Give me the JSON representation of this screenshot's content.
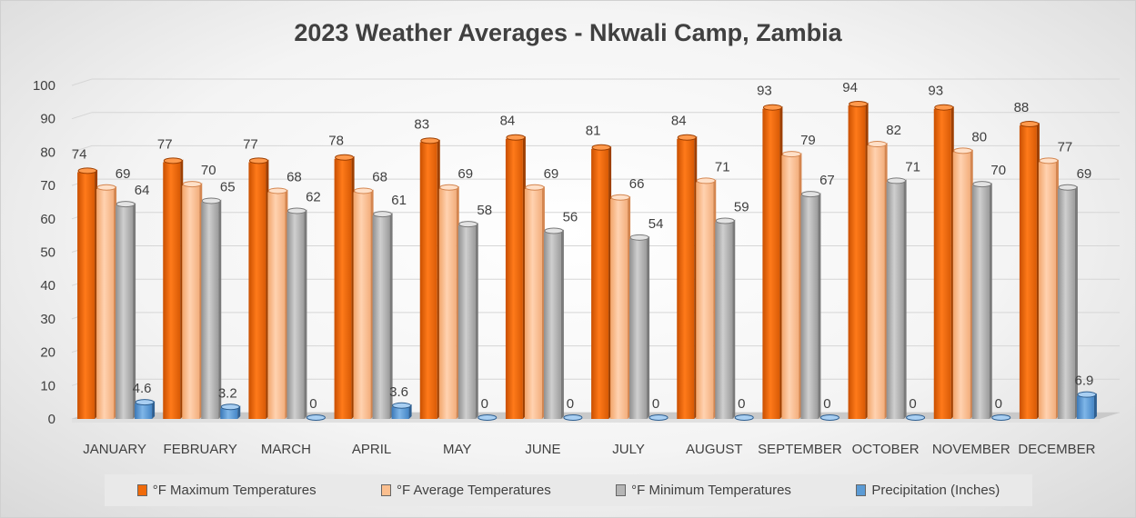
{
  "chart_data": {
    "type": "bar",
    "title": "2023 Weather Averages - Nkwali Camp, Zambia",
    "categories": [
      "JANUARY",
      "FEBRUARY",
      "MARCH",
      "APRIL",
      "MAY",
      "JUNE",
      "JULY",
      "AUGUST",
      "SEPTEMBER",
      "OCTOBER",
      "NOVEMBER",
      "DECEMBER"
    ],
    "series": [
      {
        "name": "°F Maximum Temperatures",
        "color": "#f06a0a",
        "values": [
          74,
          77,
          77,
          78,
          83,
          84,
          81,
          84,
          93,
          94,
          93,
          88
        ]
      },
      {
        "name": "°F Average Temperatures",
        "color": "#fbbf8f",
        "values": [
          69,
          70,
          68,
          68,
          69,
          69,
          66,
          71,
          79,
          82,
          80,
          77
        ]
      },
      {
        "name": "°F Minimum Temperatures",
        "color": "#b5b5b5",
        "values": [
          64,
          65,
          62,
          61,
          58,
          56,
          54,
          59,
          67,
          71,
          70,
          69
        ]
      },
      {
        "name": "Precipitation (Inches)",
        "color": "#5b9bd5",
        "values": [
          4.6,
          3.2,
          0,
          3.6,
          0,
          0,
          0,
          0,
          0,
          0,
          0,
          6.9
        ]
      }
    ],
    "ylim": [
      0,
      100
    ],
    "yticks": [
      0,
      10,
      20,
      30,
      40,
      50,
      60,
      70,
      80,
      90,
      100
    ],
    "grid": true,
    "legend_position": "bottom"
  }
}
